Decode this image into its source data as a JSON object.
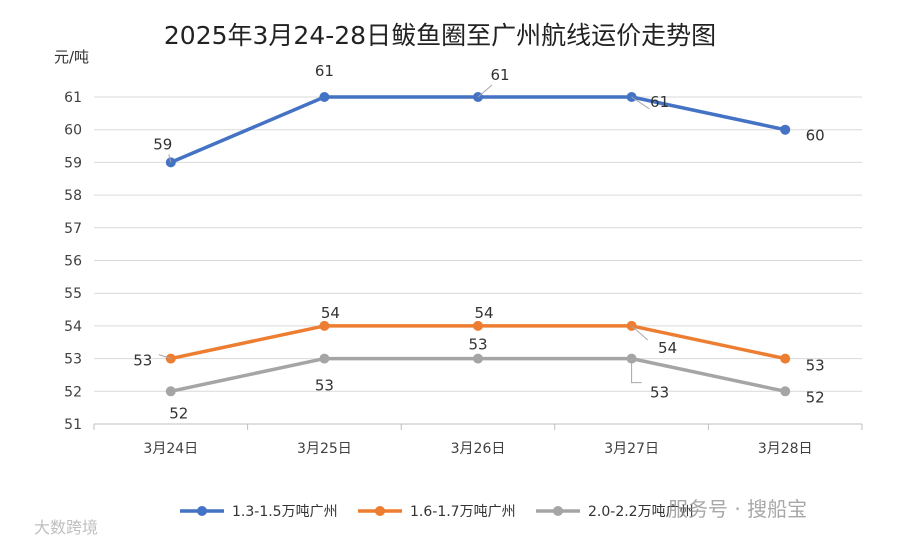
{
  "chart_data": {
    "type": "line",
    "title": "2025年3月24-28日鲅鱼圈至广州航线运价走势图",
    "ylabel": "元/吨",
    "xlabel": "",
    "categories": [
      "3月24日",
      "3月25日",
      "3月26日",
      "3月27日",
      "3月28日"
    ],
    "ylim": [
      51,
      61
    ],
    "yticks": [
      51,
      52,
      53,
      54,
      55,
      56,
      57,
      58,
      59,
      60,
      61
    ],
    "grid": true,
    "legend_position": "bottom",
    "series": [
      {
        "name": "1.3-1.5万吨广州",
        "values": [
          59,
          61,
          61,
          61,
          60
        ],
        "color": "#4472c4"
      },
      {
        "name": "1.6-1.7万吨广州",
        "values": [
          53,
          54,
          54,
          54,
          53
        ],
        "color": "#ed7d31"
      },
      {
        "name": "2.0-2.2万吨广州",
        "values": [
          52,
          53,
          53,
          53,
          52
        ],
        "color": "#a5a5a5"
      }
    ]
  },
  "watermarks": {
    "right": "服务号 · 搜船宝",
    "left": "大数跨境"
  }
}
